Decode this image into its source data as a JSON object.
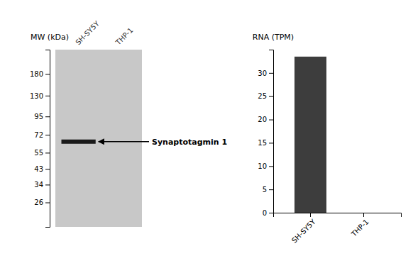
{
  "chart_data": [
    {
      "type": "blot",
      "ylabel": "MW (kDa)",
      "categories": [
        "SH-SY5Y",
        "THP-1"
      ],
      "values": [
        65,
        null
      ],
      "color": "#1a1a1a",
      "annotation": "Synaptotagmin 1",
      "log": "y",
      "ylim": [
        17.9887,
        260.016
      ],
      "yticks": [
        180,
        130,
        95,
        72,
        55,
        43,
        34,
        26
      ]
    },
    {
      "type": "bar",
      "ylabel": "RNA (TPM)",
      "categories": [
        "SH-SY5Y",
        "THP-1"
      ],
      "values": [
        33.5,
        0.0
      ],
      "color": "#3d3d3d",
      "ylim": [
        0,
        35
      ],
      "yticks": [
        0,
        5,
        10,
        15,
        20,
        25,
        30
      ]
    }
  ]
}
